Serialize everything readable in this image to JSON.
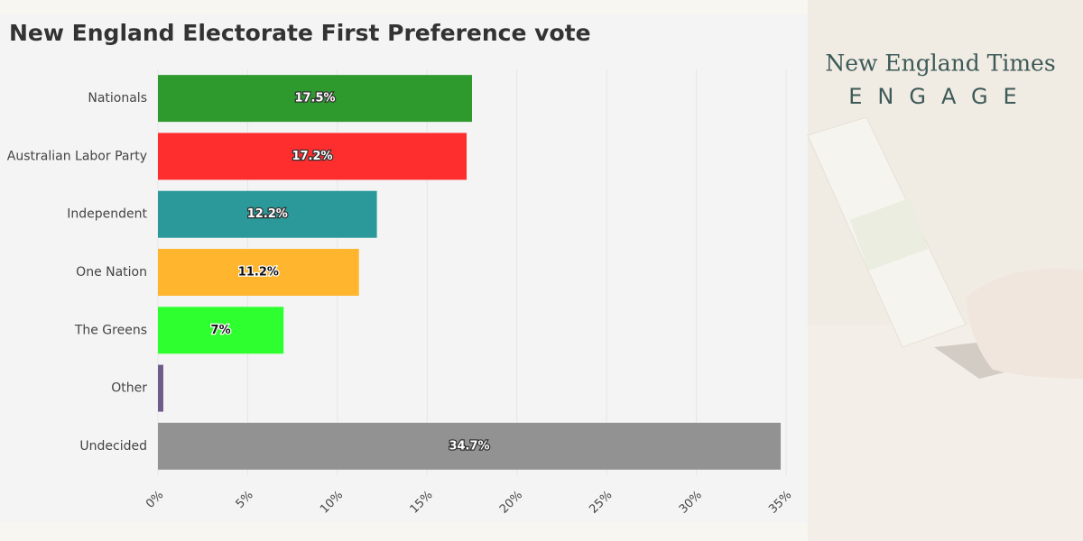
{
  "chart_data": {
    "type": "barh",
    "title": "New England Electorate First Preference vote",
    "categories": [
      "Nationals",
      "Australian Labor Party",
      "Independent",
      "One Nation",
      "The Greens",
      "Other",
      "Undecided"
    ],
    "values": [
      17.5,
      17.2,
      12.2,
      11.2,
      7,
      0.3,
      34.7
    ],
    "value_labels": [
      "17.5%",
      "17.2%",
      "12.2%",
      "11.2%",
      "7%",
      null,
      "34.7%"
    ],
    "colors": [
      "#2e9a2e",
      "#ff2e2e",
      "#2b9999",
      "#ffb52e",
      "#2eff2e",
      "#705c8c",
      "#929292"
    ],
    "xlim": [
      0,
      35
    ],
    "xticks": [
      {
        "value": 0,
        "label": "0%"
      },
      {
        "value": 5,
        "label": "5%"
      },
      {
        "value": 10,
        "label": "10%"
      },
      {
        "value": 15,
        "label": "15%"
      },
      {
        "value": 20,
        "label": "20%"
      },
      {
        "value": 25,
        "label": "25%"
      },
      {
        "value": 30,
        "label": "30%"
      },
      {
        "value": 35,
        "label": "35%"
      }
    ],
    "grid": true
  },
  "brand": {
    "name": "New England Times",
    "tagline": "ENGAGE"
  }
}
